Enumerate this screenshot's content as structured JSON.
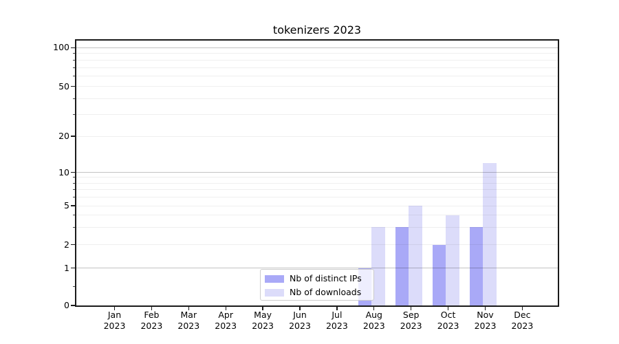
{
  "chart": {
    "title": "tokenizers 2023"
  },
  "chart_data": {
    "type": "bar",
    "title": "tokenizers 2023",
    "y_scale": "symlog",
    "xlabel": "",
    "ylabel": "",
    "categories": [
      "Jan 2023",
      "Feb 2023",
      "Mar 2023",
      "Apr 2023",
      "May 2023",
      "Jun 2023",
      "Jul 2023",
      "Aug 2023",
      "Sep 2023",
      "Oct 2023",
      "Nov 2023",
      "Dec 2023"
    ],
    "series": [
      {
        "name": "Nb of distinct IPs",
        "color": "#a9a9f7",
        "values": [
          0,
          0,
          0,
          0,
          0,
          0,
          0,
          1,
          3,
          2,
          3,
          0
        ]
      },
      {
        "name": "Nb of downloads",
        "color": "#dcdcfa",
        "values": [
          0,
          0,
          0,
          0,
          0,
          0,
          0,
          3,
          5,
          4,
          12,
          0
        ]
      }
    ],
    "yticks_labeled": [
      0,
      1,
      2,
      5,
      10,
      20,
      50,
      100
    ],
    "yticks_minor": [
      0.5,
      3,
      4,
      6,
      7,
      8,
      9,
      30,
      40,
      60,
      70,
      80,
      90
    ],
    "gridlines_major": [
      1,
      10,
      100
    ],
    "gridlines_minor": [
      2,
      3,
      4,
      5,
      6,
      7,
      8,
      9,
      20,
      30,
      40,
      50,
      60,
      70,
      80,
      90
    ],
    "ylim": [
      0,
      113
    ],
    "grid": true,
    "legend": {
      "position": "lower center"
    }
  },
  "colors": {
    "major_grid": "#c3c3c3",
    "minor_grid": "#efefef",
    "axis": "#1a1a1a",
    "text": "#000000"
  }
}
